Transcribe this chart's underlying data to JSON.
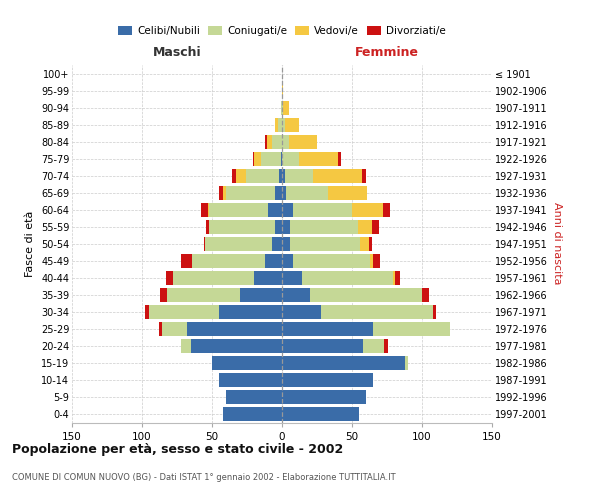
{
  "age_groups": [
    "0-4",
    "5-9",
    "10-14",
    "15-19",
    "20-24",
    "25-29",
    "30-34",
    "35-39",
    "40-44",
    "45-49",
    "50-54",
    "55-59",
    "60-64",
    "65-69",
    "70-74",
    "75-79",
    "80-84",
    "85-89",
    "90-94",
    "95-99",
    "100+"
  ],
  "birth_years": [
    "1997-2001",
    "1992-1996",
    "1987-1991",
    "1982-1986",
    "1977-1981",
    "1972-1976",
    "1967-1971",
    "1962-1966",
    "1957-1961",
    "1952-1956",
    "1947-1951",
    "1942-1946",
    "1937-1941",
    "1932-1936",
    "1927-1931",
    "1922-1926",
    "1917-1921",
    "1912-1916",
    "1907-1911",
    "1902-1906",
    "≤ 1901"
  ],
  "maschi": {
    "celibi": [
      42,
      40,
      45,
      50,
      65,
      68,
      45,
      30,
      20,
      12,
      7,
      5,
      10,
      5,
      2,
      1,
      0,
      0,
      0,
      0,
      0
    ],
    "coniugati": [
      0,
      0,
      0,
      0,
      7,
      18,
      50,
      52,
      58,
      52,
      48,
      47,
      42,
      35,
      24,
      14,
      7,
      3,
      1,
      0,
      0
    ],
    "vedovi": [
      0,
      0,
      0,
      0,
      0,
      0,
      0,
      0,
      0,
      0,
      0,
      0,
      1,
      2,
      7,
      5,
      4,
      2,
      0,
      0,
      0
    ],
    "divorziati": [
      0,
      0,
      0,
      0,
      0,
      2,
      3,
      5,
      5,
      8,
      1,
      2,
      5,
      3,
      3,
      1,
      1,
      0,
      0,
      0,
      0
    ]
  },
  "femmine": {
    "nubili": [
      55,
      60,
      65,
      88,
      58,
      65,
      28,
      20,
      14,
      8,
      6,
      6,
      8,
      3,
      2,
      0,
      0,
      0,
      0,
      0,
      0
    ],
    "coniugate": [
      0,
      0,
      0,
      2,
      15,
      55,
      80,
      80,
      65,
      55,
      50,
      48,
      42,
      30,
      20,
      12,
      5,
      2,
      1,
      0,
      0
    ],
    "vedove": [
      0,
      0,
      0,
      0,
      0,
      0,
      0,
      0,
      2,
      2,
      6,
      10,
      22,
      28,
      35,
      28,
      20,
      10,
      4,
      1,
      0
    ],
    "divorziate": [
      0,
      0,
      0,
      0,
      3,
      0,
      2,
      5,
      3,
      5,
      2,
      5,
      5,
      0,
      3,
      2,
      0,
      0,
      0,
      0,
      0
    ]
  },
  "colors": {
    "celibi_nubili": "#3a6ca8",
    "coniugati": "#c5d896",
    "vedovi": "#f5c842",
    "divorziati": "#cc1111"
  },
  "xlim": 150,
  "title": "Popolazione per età, sesso e stato civile - 2002",
  "subtitle": "COMUNE DI COMUN NUOVO (BG) - Dati ISTAT 1° gennaio 2002 - Elaborazione TUTTITALIA.IT",
  "ylabel_left": "Fasce di età",
  "ylabel_right": "Anni di nascita",
  "label_maschi": "Maschi",
  "label_femmine": "Femmine",
  "legend": [
    "Celibi/Nubili",
    "Coniugati/e",
    "Vedovi/e",
    "Divorziati/e"
  ]
}
